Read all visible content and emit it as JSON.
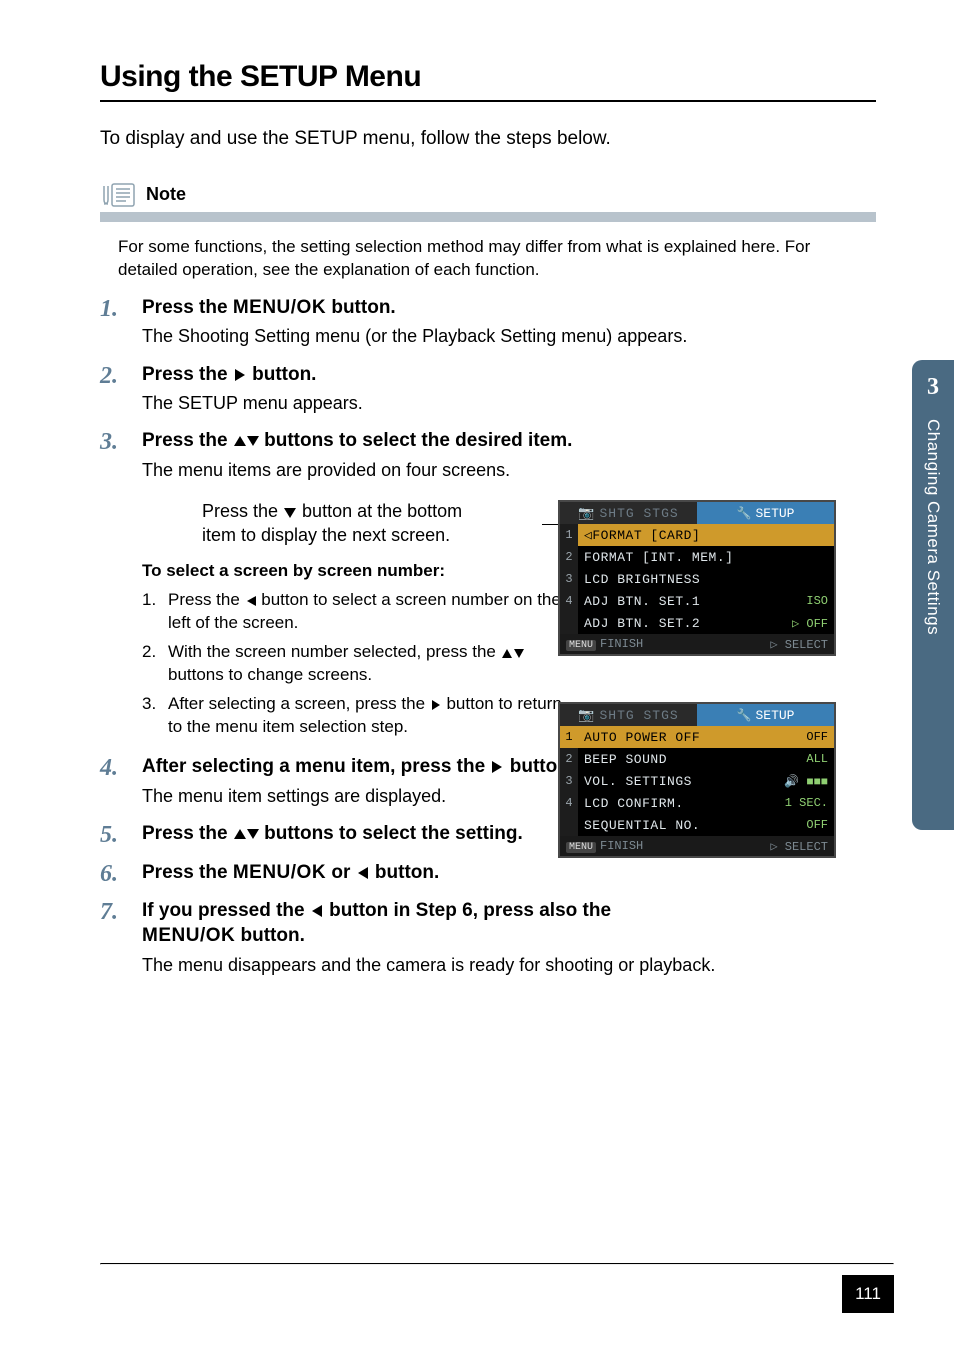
{
  "title": "Using the SETUP Menu",
  "intro": "To display and use the SETUP menu, follow the steps below.",
  "note": {
    "label": "Note",
    "body": "For some functions, the setting selection method may differ from what is explained here. For detailed operation, see the explanation of each function."
  },
  "menuok_text": "MENU/OK",
  "steps": {
    "s1": {
      "num": "1.",
      "title_pre": "Press the ",
      "title_post": " button.",
      "desc": "The Shooting Setting menu (or the Playback Setting menu) appears."
    },
    "s2": {
      "num": "2.",
      "title_pre": "Press the ",
      "title_post": " button.",
      "desc": "The SETUP menu appears."
    },
    "s3": {
      "num": "3.",
      "title_pre": "Press the ",
      "title_post": " buttons to select the desired item.",
      "desc": "The menu items are provided on four screens."
    },
    "s3_sub": {
      "line1_pre": "Press the ",
      "line1_post": " button at the bottom",
      "line2": "item to display the next screen."
    },
    "s4": {
      "num": "4.",
      "title_pre": "After selecting a menu item, press the ",
      "title_post": " button.",
      "desc": "The menu item settings are displayed."
    },
    "s5": {
      "num": "5.",
      "title_pre": "Press the ",
      "title_post": " buttons to select the setting."
    },
    "s6": {
      "num": "6.",
      "title_pre": "Press the ",
      "title_mid": " or ",
      "title_post": " button."
    },
    "s7": {
      "num": "7.",
      "title_pre": "If you pressed the ",
      "title_mid": " button in Step 6, press also the ",
      "title_post": " button.",
      "desc": "The menu disappears and the camera is ready for shooting or playback."
    }
  },
  "subselect": {
    "head": "To select a screen by screen number:",
    "items": [
      {
        "n": "1.",
        "pre": "Press the ",
        "post": " button to select a screen number on the left of the screen."
      },
      {
        "n": "2.",
        "pre": "With the screen number selected, press the ",
        "post": " buttons to change screens."
      },
      {
        "n": "3.",
        "pre": "After selecting a screen, press the ",
        "post": " button to return to the menu item selection step."
      }
    ]
  },
  "lcd_common": {
    "tab_left": "SHTG STGS",
    "tab_right": "SETUP",
    "foot_left": "FINISH",
    "foot_right": "SELECT",
    "foot_menu": "MENU"
  },
  "lcd1": {
    "rows": [
      {
        "idx": "1",
        "lbl": "FORMAT [CARD]",
        "val": "",
        "hi": true,
        "arrow": "left"
      },
      {
        "idx": "2",
        "lbl": "FORMAT [INT. MEM.]",
        "val": "",
        "hi": false
      },
      {
        "idx": "3",
        "lbl": "LCD BRIGHTNESS",
        "val": "",
        "hi": false
      },
      {
        "idx": "4",
        "lbl": "ADJ BTN. SET.1",
        "val": "ISO",
        "hi": false
      },
      {
        "idx": "",
        "lbl": "ADJ BTN. SET.2",
        "val": "OFF",
        "hi": false,
        "arrow": "right"
      }
    ]
  },
  "lcd2": {
    "rows": [
      {
        "idx": "1",
        "lbl": "AUTO POWER OFF",
        "val": "OFF",
        "hi": true
      },
      {
        "idx": "2",
        "lbl": "BEEP SOUND",
        "val": "ALL",
        "hi": false
      },
      {
        "idx": "3",
        "lbl": "VOL. SETTINGS",
        "val": "■■■",
        "hi": false,
        "valpre": "🔊"
      },
      {
        "idx": "4",
        "lbl": "LCD CONFIRM.",
        "val": "1 SEC.",
        "hi": false
      },
      {
        "idx": "",
        "lbl": "SEQUENTIAL NO.",
        "val": "OFF",
        "hi": false
      }
    ]
  },
  "side": {
    "num": "3",
    "label": "Changing Camera Settings"
  },
  "page_number": "111",
  "colors": {
    "step_num": "#5f7d95",
    "note_rule": "#b8c3cc",
    "side_tab": "#4a6a82",
    "lcd_highlight": "#cf9a2b",
    "lcd_value": "#8fcf72",
    "lcd_tab_active": "#3a7fb5"
  }
}
